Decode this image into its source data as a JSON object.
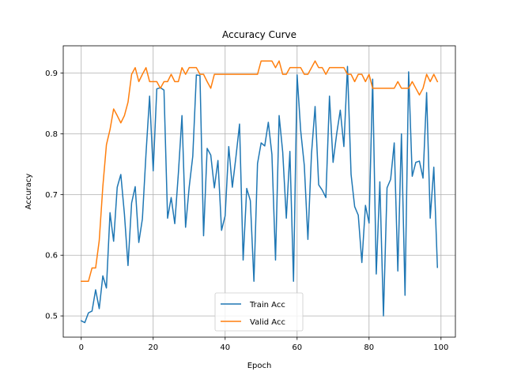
{
  "chart_data": {
    "type": "line",
    "title": "Accuracy Curve",
    "xlabel": "Epoch",
    "ylabel": "Accuracy",
    "xlim": [
      -5,
      104
    ],
    "ylim": [
      0.465,
      0.945
    ],
    "xticks": [
      0,
      20,
      40,
      60,
      80,
      100
    ],
    "yticks": [
      0.5,
      0.6,
      0.7,
      0.8,
      0.9
    ],
    "grid": true,
    "legend_position": "bottom-center",
    "series": [
      {
        "name": "Train Acc",
        "color": "#1f77b4",
        "values": [
          0.492,
          0.489,
          0.505,
          0.508,
          0.543,
          0.512,
          0.566,
          0.546,
          0.67,
          0.623,
          0.712,
          0.733,
          0.668,
          0.583,
          0.686,
          0.713,
          0.621,
          0.66,
          0.767,
          0.862,
          0.739,
          0.874,
          0.876,
          0.872,
          0.661,
          0.695,
          0.652,
          0.735,
          0.83,
          0.646,
          0.712,
          0.763,
          0.897,
          0.896,
          0.632,
          0.776,
          0.765,
          0.711,
          0.756,
          0.641,
          0.665,
          0.779,
          0.712,
          0.762,
          0.816,
          0.592,
          0.71,
          0.69,
          0.557,
          0.751,
          0.785,
          0.78,
          0.819,
          0.766,
          0.592,
          0.83,
          0.77,
          0.661,
          0.771,
          0.557,
          0.897,
          0.805,
          0.748,
          0.626,
          0.767,
          0.845,
          0.716,
          0.707,
          0.695,
          0.862,
          0.753,
          0.8,
          0.839,
          0.779,
          0.911,
          0.733,
          0.68,
          0.666,
          0.588,
          0.682,
          0.653,
          0.89,
          0.569,
          0.721,
          0.5,
          0.711,
          0.725,
          0.785,
          0.574,
          0.8,
          0.534,
          0.902,
          0.73,
          0.753,
          0.755,
          0.727,
          0.868,
          0.661,
          0.745,
          0.58
        ]
      },
      {
        "name": "Valid Acc",
        "color": "#ff7f0e",
        "values": [
          0.557,
          0.557,
          0.557,
          0.579,
          0.579,
          0.624,
          0.713,
          0.782,
          0.807,
          0.841,
          0.83,
          0.818,
          0.83,
          0.852,
          0.898,
          0.909,
          0.886,
          0.898,
          0.909,
          0.886,
          0.886,
          0.886,
          0.875,
          0.886,
          0.886,
          0.898,
          0.886,
          0.886,
          0.909,
          0.898,
          0.909,
          0.909,
          0.909,
          0.898,
          0.898,
          0.886,
          0.875,
          0.898,
          0.898,
          0.898,
          0.898,
          0.898,
          0.898,
          0.898,
          0.898,
          0.898,
          0.898,
          0.898,
          0.898,
          0.898,
          0.92,
          0.92,
          0.92,
          0.92,
          0.909,
          0.92,
          0.898,
          0.898,
          0.909,
          0.909,
          0.909,
          0.909,
          0.898,
          0.898,
          0.909,
          0.92,
          0.909,
          0.909,
          0.898,
          0.909,
          0.909,
          0.909,
          0.909,
          0.909,
          0.898,
          0.898,
          0.886,
          0.898,
          0.898,
          0.886,
          0.898,
          0.875,
          0.875,
          0.875,
          0.875,
          0.875,
          0.875,
          0.875,
          0.886,
          0.875,
          0.875,
          0.875,
          0.886,
          0.875,
          0.864,
          0.875,
          0.898,
          0.886,
          0.898,
          0.886
        ]
      }
    ]
  }
}
